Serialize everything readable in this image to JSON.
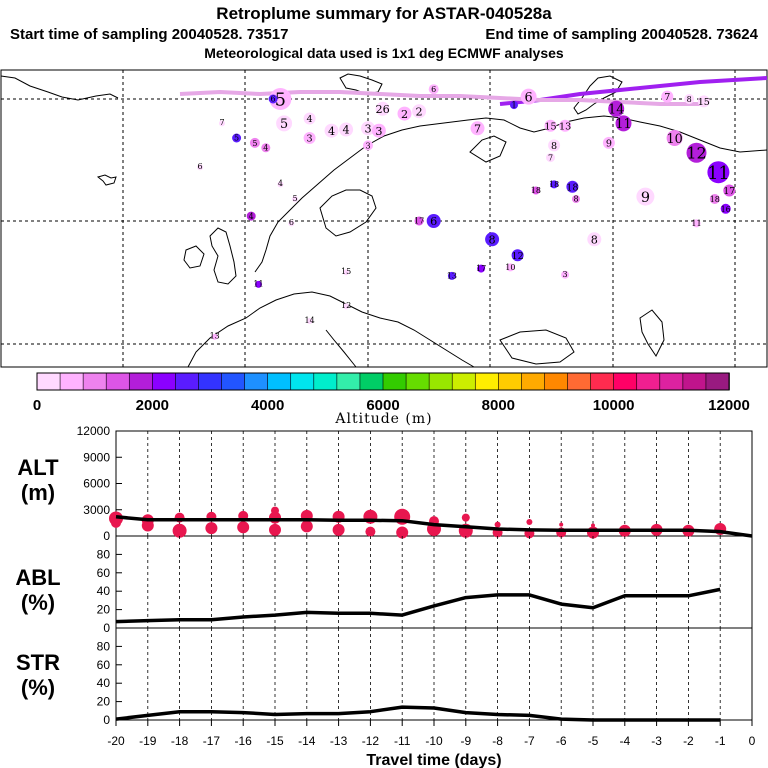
{
  "header": {
    "title": "Retroplume summary for ASTAR-040528a",
    "start_label": "Start time of sampling 20040528. 73517",
    "end_label": "End time of sampling 20040528. 73624",
    "met_label": "Meteorological data used is 1x1 deg ECMWF analyses"
  },
  "colors": {
    "background": "#ffffff",
    "line": "#000000",
    "altitude_dots": "#e8174f",
    "colorbar": [
      "#ffd9ff",
      "#ffb3ff",
      "#ee82ee",
      "#dd55e6",
      "#b31ed9",
      "#8b00ff",
      "#5a1cff",
      "#3333ff",
      "#2255ff",
      "#1e90ff",
      "#00bfff",
      "#00e5ee",
      "#00eecc",
      "#33eeaa",
      "#00cd66",
      "#33cc00",
      "#66dd00",
      "#99e600",
      "#ccee00",
      "#ffee00",
      "#ffcc00",
      "#ffaa00",
      "#ff8800",
      "#ff6a33",
      "#ff2b4f",
      "#ff0066",
      "#f01f90",
      "#dd22a0",
      "#c0148c",
      "#991a80"
    ]
  },
  "map": {
    "labels": [
      {
        "text": "5",
        "lon": -12,
        "lat": 74,
        "size": 22,
        "alt": 600
      },
      {
        "text": "5",
        "lon": -11.5,
        "lat": 72,
        "size": 16,
        "alt": 300
      },
      {
        "text": "4",
        "lon": -8,
        "lat": 72.4,
        "size": 12,
        "alt": 200
      },
      {
        "text": "4",
        "lon": -5,
        "lat": 71.4,
        "size": 14,
        "alt": 300
      },
      {
        "text": "4",
        "lon": -3,
        "lat": 71.5,
        "size": 14,
        "alt": 300
      },
      {
        "text": "3",
        "lon": 0,
        "lat": 71.6,
        "size": 14,
        "alt": 300
      },
      {
        "text": "3",
        "lon": 1.5,
        "lat": 71.4,
        "size": 14,
        "alt": 400
      },
      {
        "text": "26",
        "lon": 2,
        "lat": 73.2,
        "size": 14,
        "alt": 300
      },
      {
        "text": "2",
        "lon": 5,
        "lat": 72.8,
        "size": 14,
        "alt": 400
      },
      {
        "text": "2",
        "lon": 7,
        "lat": 73,
        "size": 14,
        "alt": 300
      },
      {
        "text": "13",
        "lon": 6,
        "lat": 76.5,
        "size": 10,
        "alt": 300
      },
      {
        "text": "6",
        "lon": 9,
        "lat": 74.8,
        "size": 10,
        "alt": 500
      },
      {
        "text": "5",
        "lon": -15.5,
        "lat": 70.4,
        "size": 10,
        "alt": 800
      },
      {
        "text": "4",
        "lon": -14,
        "lat": 70,
        "size": 9,
        "alt": 900
      },
      {
        "text": "3",
        "lon": -8,
        "lat": 70.8,
        "size": 12,
        "alt": 700
      },
      {
        "text": "3",
        "lon": 0,
        "lat": 70.2,
        "size": 10,
        "alt": 400
      },
      {
        "text": "7",
        "lon": 15,
        "lat": 71.6,
        "size": 14,
        "alt": 600
      },
      {
        "text": "1",
        "lon": 20,
        "lat": 73.5,
        "size": 8,
        "alt": 2500
      },
      {
        "text": "6",
        "lon": 22,
        "lat": 74.2,
        "size": 16,
        "alt": 500
      },
      {
        "text": "15",
        "lon": 25,
        "lat": 71.8,
        "size": 12,
        "alt": 400
      },
      {
        "text": "13",
        "lon": 27,
        "lat": 71.8,
        "size": 12,
        "alt": 400
      },
      {
        "text": "8",
        "lon": 25.5,
        "lat": 70.2,
        "size": 12,
        "alt": 300
      },
      {
        "text": "7",
        "lon": 25,
        "lat": 69.2,
        "size": 9,
        "alt": 300
      },
      {
        "text": "14",
        "lon": 34,
        "lat": 73.2,
        "size": 16,
        "alt": 1700
      },
      {
        "text": "11",
        "lon": 35,
        "lat": 72,
        "size": 16,
        "alt": 1600
      },
      {
        "text": "9",
        "lon": 33,
        "lat": 70.4,
        "size": 12,
        "alt": 500
      },
      {
        "text": "7",
        "lon": 41,
        "lat": 74.2,
        "size": 12,
        "alt": 600
      },
      {
        "text": "8",
        "lon": 44,
        "lat": 74,
        "size": 10,
        "alt": 200
      },
      {
        "text": "15",
        "lon": 46,
        "lat": 73.8,
        "size": 12,
        "alt": 200
      },
      {
        "text": "9",
        "lon": 50,
        "lat": 76.5,
        "size": 8,
        "alt": 200
      },
      {
        "text": "10",
        "lon": 42,
        "lat": 70.8,
        "size": 16,
        "alt": 900
      },
      {
        "text": "12",
        "lon": 45,
        "lat": 69.6,
        "size": 20,
        "alt": 1700
      },
      {
        "text": "11",
        "lon": 48,
        "lat": 68,
        "size": 22,
        "alt": 2000
      },
      {
        "text": "17",
        "lon": 49.5,
        "lat": 66.5,
        "size": 12,
        "alt": 1500
      },
      {
        "text": "18",
        "lon": 47.5,
        "lat": 65.8,
        "size": 10,
        "alt": 1000
      },
      {
        "text": "16",
        "lon": 49,
        "lat": 65,
        "size": 10,
        "alt": 2200
      },
      {
        "text": "9",
        "lon": 38,
        "lat": 66,
        "size": 18,
        "alt": 200
      },
      {
        "text": "11",
        "lon": 45,
        "lat": 63.8,
        "size": 8,
        "alt": 500
      },
      {
        "text": "8",
        "lon": 31,
        "lat": 62.5,
        "size": 14,
        "alt": 300
      },
      {
        "text": "8",
        "lon": 17,
        "lat": 62.5,
        "size": 14,
        "alt": 2600
      },
      {
        "text": "18",
        "lon": 23,
        "lat": 66.5,
        "size": 8,
        "alt": 1500
      },
      {
        "text": "18",
        "lon": 25.5,
        "lat": 67,
        "size": 8,
        "alt": 2500
      },
      {
        "text": "18",
        "lon": 28,
        "lat": 66.8,
        "size": 12,
        "alt": 2600
      },
      {
        "text": "8",
        "lon": 28.5,
        "lat": 65.8,
        "size": 8,
        "alt": 800
      },
      {
        "text": "12",
        "lon": 20.5,
        "lat": 61.2,
        "size": 12,
        "alt": 2700
      },
      {
        "text": "10",
        "lon": 19.5,
        "lat": 60.2,
        "size": 8,
        "alt": 500
      },
      {
        "text": "17",
        "lon": 15.5,
        "lat": 60.1,
        "size": 8,
        "alt": 2100
      },
      {
        "text": "3",
        "lon": 27,
        "lat": 59.6,
        "size": 8,
        "alt": 700
      },
      {
        "text": "13",
        "lon": 11.5,
        "lat": 59.5,
        "size": 8,
        "alt": 2600
      },
      {
        "text": "17",
        "lon": 7,
        "lat": 64,
        "size": 9,
        "alt": 1500
      },
      {
        "text": "6",
        "lon": 9,
        "lat": 64,
        "size": 14,
        "alt": 2700
      },
      {
        "text": "5",
        "lon": -10,
        "lat": 65.8,
        "size": 6,
        "alt": 200
      },
      {
        "text": "6",
        "lon": -10.5,
        "lat": 63.8,
        "size": 6,
        "alt": 200
      },
      {
        "text": "4",
        "lon": -12,
        "lat": 67,
        "size": 6,
        "alt": 200
      },
      {
        "text": "5",
        "lon": -18,
        "lat": 70.8,
        "size": 9,
        "alt": 2700
      },
      {
        "text": "6",
        "lon": -23,
        "lat": 68.4,
        "size": 6,
        "alt": 200
      },
      {
        "text": "7",
        "lon": -20,
        "lat": 72,
        "size": 6,
        "alt": 200
      },
      {
        "text": "4",
        "lon": -16,
        "lat": 64.4,
        "size": 9,
        "alt": 1800
      },
      {
        "text": "6",
        "lon": -13,
        "lat": 74,
        "size": 9,
        "alt": 2700
      },
      {
        "text": "11",
        "lon": -15,
        "lat": 58.8,
        "size": 7,
        "alt": 2100
      },
      {
        "text": "13",
        "lon": -21,
        "lat": 54.5,
        "size": 6,
        "alt": 400
      },
      {
        "text": "14",
        "lon": -8,
        "lat": 55.8,
        "size": 6,
        "alt": 300
      },
      {
        "text": "15",
        "lon": -3,
        "lat": 59.8,
        "size": 6,
        "alt": 300
      },
      {
        "text": "12",
        "lon": -3,
        "lat": 57,
        "size": 6,
        "alt": 200
      }
    ]
  },
  "colorbar": {
    "ticks": [
      "0",
      "2000",
      "4000",
      "6000",
      "8000",
      "10000",
      "12000"
    ],
    "label": "Altitude (m)"
  },
  "chart_data": [
    {
      "type": "line",
      "panel": "ALT",
      "ylabel": "ALT\n(m)",
      "ylabel_line1": "ALT",
      "ylabel_line2": "(m)",
      "ylim": [
        0,
        12000
      ],
      "yticks": [
        "0",
        "3000",
        "6000",
        "9000",
        "12000"
      ],
      "x": [
        -20,
        -19,
        -18,
        -17,
        -16,
        -15,
        -14,
        -13,
        -12,
        -11,
        -10,
        -9,
        -8,
        -7,
        -6,
        -5,
        -4,
        -3,
        -2,
        -1,
        0
      ],
      "values": [
        2200,
        1850,
        1850,
        1850,
        1850,
        1850,
        1850,
        1800,
        1800,
        1750,
        1300,
        1050,
        800,
        700,
        650,
        650,
        650,
        650,
        650,
        500,
        0
      ],
      "dots": [
        {
          "x": -20,
          "y": 2000,
          "r": 7
        },
        {
          "x": -20,
          "y": 1500,
          "r": 5
        },
        {
          "x": -19,
          "y": 1800,
          "r": 6
        },
        {
          "x": -19,
          "y": 1200,
          "r": 6
        },
        {
          "x": -18,
          "y": 2100,
          "r": 5
        },
        {
          "x": -18,
          "y": 600,
          "r": 7
        },
        {
          "x": -17,
          "y": 2200,
          "r": 5
        },
        {
          "x": -17,
          "y": 900,
          "r": 6
        },
        {
          "x": -16,
          "y": 2300,
          "r": 5
        },
        {
          "x": -16,
          "y": 1000,
          "r": 6
        },
        {
          "x": -15,
          "y": 2900,
          "r": 4
        },
        {
          "x": -15,
          "y": 2100,
          "r": 6
        },
        {
          "x": -15,
          "y": 700,
          "r": 6
        },
        {
          "x": -14,
          "y": 2300,
          "r": 6
        },
        {
          "x": -14,
          "y": 1100,
          "r": 6
        },
        {
          "x": -13,
          "y": 2200,
          "r": 6
        },
        {
          "x": -13,
          "y": 700,
          "r": 6
        },
        {
          "x": -12,
          "y": 2200,
          "r": 7
        },
        {
          "x": -12,
          "y": 500,
          "r": 5
        },
        {
          "x": -11,
          "y": 2200,
          "r": 8
        },
        {
          "x": -11,
          "y": 400,
          "r": 6
        },
        {
          "x": -10,
          "y": 1700,
          "r": 5
        },
        {
          "x": -10,
          "y": 800,
          "r": 7
        },
        {
          "x": -9,
          "y": 2100,
          "r": 4
        },
        {
          "x": -9,
          "y": 600,
          "r": 7
        },
        {
          "x": -8,
          "y": 1300,
          "r": 3
        },
        {
          "x": -8,
          "y": 400,
          "r": 5
        },
        {
          "x": -7,
          "y": 1600,
          "r": 3
        },
        {
          "x": -7,
          "y": 300,
          "r": 5
        },
        {
          "x": -6,
          "y": 1300,
          "r": 2
        },
        {
          "x": -6,
          "y": 400,
          "r": 5
        },
        {
          "x": -5,
          "y": 1200,
          "r": 2
        },
        {
          "x": -5,
          "y": 400,
          "r": 6
        },
        {
          "x": -4,
          "y": 600,
          "r": 6
        },
        {
          "x": -3,
          "y": 700,
          "r": 6
        },
        {
          "x": -2,
          "y": 600,
          "r": 6
        },
        {
          "x": -1,
          "y": 800,
          "r": 6
        }
      ]
    },
    {
      "type": "line",
      "panel": "ABL",
      "ylabel_line1": "ABL",
      "ylabel_line2": "(%)",
      "ylim": [
        0,
        100
      ],
      "yticks": [
        "0",
        "20",
        "40",
        "60",
        "80"
      ],
      "x": [
        -20,
        -19,
        -18,
        -17,
        -16,
        -15,
        -14,
        -13,
        -12,
        -11,
        -10,
        -9,
        -8,
        -7,
        -6,
        -5,
        -4,
        -3,
        -2,
        -1
      ],
      "values": [
        7,
        8,
        9,
        9,
        12,
        14,
        17,
        16,
        16,
        14,
        24,
        33,
        36,
        36,
        26,
        22,
        35,
        35,
        35,
        42
      ]
    },
    {
      "type": "line",
      "panel": "STR",
      "ylabel_line1": "STR",
      "ylabel_line2": "(%)",
      "ylim": [
        0,
        100
      ],
      "yticks": [
        "0",
        "20",
        "40",
        "60",
        "80"
      ],
      "x": [
        -20,
        -19,
        -18,
        -17,
        -16,
        -15,
        -14,
        -13,
        -12,
        -11,
        -10,
        -9,
        -8,
        -7,
        -6,
        -5,
        -4,
        -3,
        -2,
        -1
      ],
      "values": [
        1,
        5,
        9,
        9,
        8,
        6,
        7,
        7,
        9,
        14,
        13,
        8,
        6,
        5,
        1,
        0,
        0,
        0,
        0,
        0
      ],
      "xlabel": "Travel time (days)",
      "xticks": [
        "-20",
        "-19",
        "-18",
        "-17",
        "-16",
        "-15",
        "-14",
        "-13",
        "-12",
        "-11",
        "-10",
        "-9",
        "-8",
        "-7",
        "-6",
        "-5",
        "-4",
        "-3",
        "-2",
        "-1",
        "0"
      ]
    }
  ]
}
